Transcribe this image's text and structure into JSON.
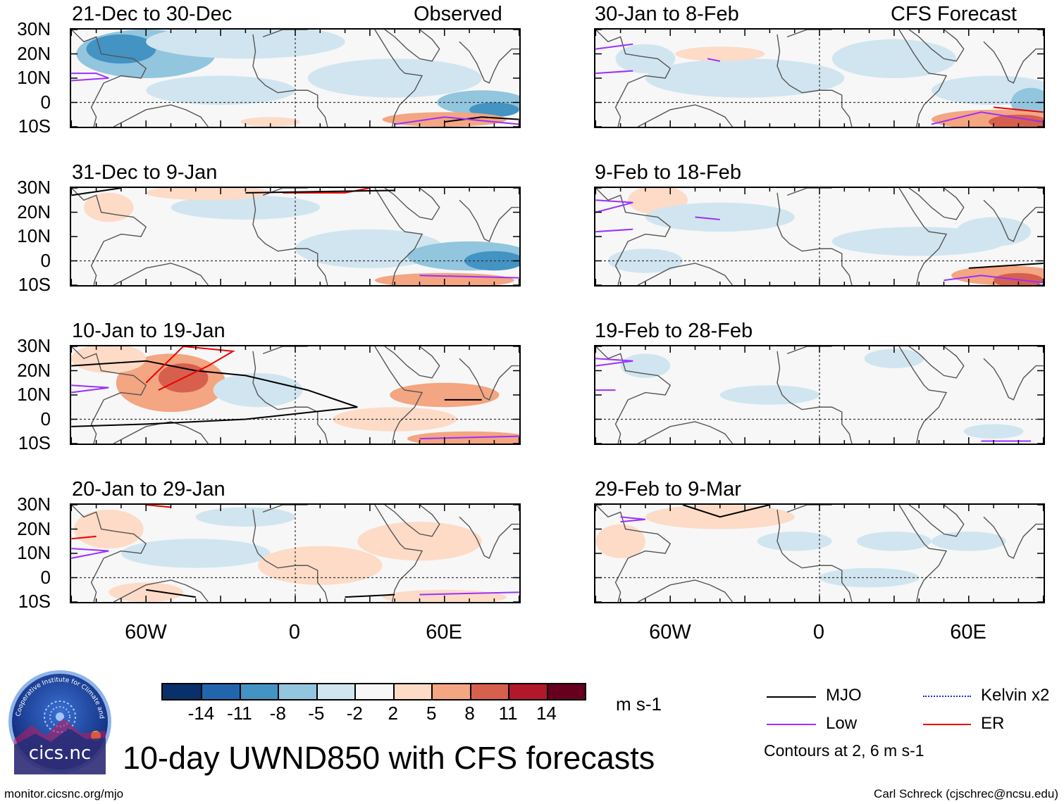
{
  "left_header": "Observed",
  "right_header": "CFS Forecast",
  "panels_left": [
    {
      "title": "21-Dec to 30-Dec"
    },
    {
      "title": "31-Dec to 9-Jan"
    },
    {
      "title": "10-Jan to 19-Jan"
    },
    {
      "title": "20-Jan to 29-Jan"
    }
  ],
  "panels_right": [
    {
      "title": "30-Jan to 8-Feb"
    },
    {
      "title": "9-Feb to 18-Feb"
    },
    {
      "title": "19-Feb to 28-Feb"
    },
    {
      "title": "29-Feb to 9-Mar"
    }
  ],
  "lat_labels": [
    "30N",
    "20N",
    "10N",
    "0",
    "10S"
  ],
  "lon_labels": [
    "60W",
    "0",
    "60E"
  ],
  "colorbar": {
    "colors": [
      "#08306b",
      "#2166ac",
      "#4393c3",
      "#92c5de",
      "#d1e5f0",
      "#f7f7f7",
      "#fddbc7",
      "#f4a582",
      "#d6604d",
      "#b2182b",
      "#67001f"
    ],
    "labels": [
      "-14",
      "-11",
      "-8",
      "-5",
      "-2",
      "2",
      "5",
      "8",
      "11",
      "14"
    ],
    "units": "m s-1"
  },
  "legend": {
    "items": [
      {
        "label": "MJO",
        "color": "#000000",
        "style": "solid"
      },
      {
        "label": "Kelvin x2",
        "color": "#2222ee",
        "style": "dotted"
      },
      {
        "label": "Low",
        "color": "#9b30ff",
        "style": "solid"
      },
      {
        "label": "ER",
        "color": "#ee0000",
        "style": "solid"
      }
    ],
    "note": "Contours at 2, 6 m s-1"
  },
  "logo": {
    "text": "cics.nc",
    "arc_text": "Cooperative Institute for Climate and Satellites"
  },
  "main_title": "10-day UWND850 with CFS forecasts",
  "footer_left": "monitor.cicsnc.org/mjo",
  "footer_right": "Carl Schreck (cjschrec@ncsu.edu)"
}
